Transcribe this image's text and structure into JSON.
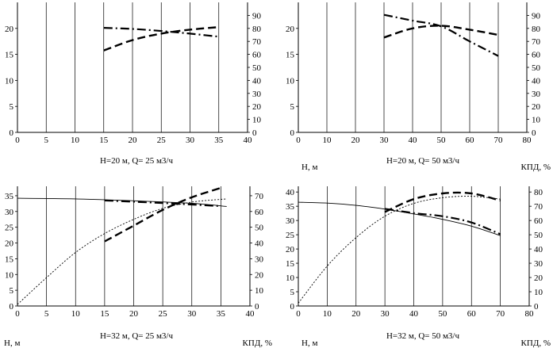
{
  "chart_data": [
    {
      "type": "line",
      "caption": "H=20 м, Q= 25 м3/ч",
      "xlim": [
        0,
        40
      ],
      "xticks": [
        0,
        5,
        10,
        15,
        20,
        25,
        30,
        35,
        40
      ],
      "ylim": [
        0,
        25
      ],
      "yticks": [
        0,
        5,
        10,
        15,
        20
      ],
      "y2lim": [
        0,
        100
      ],
      "y2ticks": [
        0,
        10,
        20,
        30,
        40,
        50,
        60,
        70,
        80,
        90
      ],
      "ylabel": "",
      "y2label": "",
      "series": [
        {
          "name": "head",
          "style": "dashdot",
          "axis": "left",
          "x": [
            15,
            20,
            25,
            30,
            35
          ],
          "y": [
            20.1,
            19.9,
            19.5,
            19.0,
            18.4
          ]
        },
        {
          "name": "efficiency",
          "style": "dashed",
          "axis": "right",
          "x": [
            15,
            20,
            25,
            30,
            35
          ],
          "y": [
            63,
            71,
            76,
            79,
            81
          ]
        }
      ]
    },
    {
      "type": "line",
      "caption": "H=20 м, Q= 50 м3/ч",
      "xlim": [
        0,
        80
      ],
      "xticks": [
        0,
        10,
        20,
        30,
        40,
        50,
        60,
        70,
        80
      ],
      "ylim": [
        0,
        25
      ],
      "yticks": [
        0,
        5,
        10,
        15,
        20
      ],
      "y2lim": [
        0,
        100
      ],
      "y2ticks": [
        0,
        10,
        20,
        30,
        40,
        50,
        60,
        70,
        80,
        90
      ],
      "ylabel": "Н, м",
      "y2label": "КПД, %",
      "series": [
        {
          "name": "head",
          "style": "dashdot",
          "axis": "left",
          "x": [
            30,
            40,
            50,
            60,
            70
          ],
          "y": [
            22.6,
            21.5,
            20.4,
            17.5,
            14.7
          ]
        },
        {
          "name": "efficiency",
          "style": "dashed",
          "axis": "right",
          "x": [
            30,
            40,
            50,
            60,
            70
          ],
          "y": [
            73,
            80,
            82,
            79,
            75
          ]
        }
      ]
    },
    {
      "type": "line",
      "caption": "H=32 м, Q= 25 м3/ч",
      "xlim": [
        0,
        40
      ],
      "xticks": [
        0,
        5,
        10,
        15,
        20,
        25,
        30,
        35,
        40
      ],
      "ylim": [
        0,
        38
      ],
      "yticks": [
        0,
        5,
        10,
        15,
        20,
        25,
        30,
        35
      ],
      "y2lim": [
        0,
        76
      ],
      "y2ticks": [
        0,
        10,
        20,
        30,
        40,
        50,
        60,
        70
      ],
      "ylabel": "Н, м",
      "y2label": "КПД, %",
      "series": [
        {
          "name": "head-reference",
          "style": "solid-thin",
          "axis": "left",
          "x": [
            0,
            10,
            20,
            30,
            36
          ],
          "y": [
            34.2,
            34.0,
            33.4,
            32.6,
            31.6
          ]
        },
        {
          "name": "head",
          "style": "dashdot",
          "axis": "left",
          "x": [
            15,
            20,
            25,
            30,
            35
          ],
          "y": [
            33.5,
            33.1,
            32.7,
            32.2,
            31.7
          ]
        },
        {
          "name": "efficiency-reference",
          "style": "dotted-thin",
          "axis": "right",
          "x": [
            0,
            5,
            10,
            15,
            20,
            25,
            30,
            36
          ],
          "y": [
            1,
            18,
            34,
            46,
            55,
            62,
            66,
            68
          ]
        },
        {
          "name": "efficiency",
          "style": "dashed",
          "axis": "right",
          "x": [
            15,
            20,
            25,
            30,
            35
          ],
          "y": [
            41,
            51,
            61,
            69,
            75
          ]
        }
      ]
    },
    {
      "type": "line",
      "caption": "H=32 м, Q= 50 м3/ч",
      "xlim": [
        0,
        80
      ],
      "xticks": [
        0,
        10,
        20,
        30,
        40,
        50,
        60,
        70,
        80
      ],
      "ylim": [
        0,
        42
      ],
      "yticks": [
        0,
        5,
        10,
        15,
        20,
        25,
        30,
        35,
        40
      ],
      "y2lim": [
        0,
        84
      ],
      "y2ticks": [
        0,
        10,
        20,
        30,
        40,
        50,
        60,
        70,
        80
      ],
      "ylabel": "Н, м",
      "y2label": "КПД, %",
      "series": [
        {
          "name": "head-reference",
          "style": "solid-thin",
          "axis": "left",
          "x": [
            0,
            10,
            20,
            30,
            40,
            50,
            60,
            70
          ],
          "y": [
            36.4,
            36.1,
            35.3,
            34.0,
            32.3,
            30.4,
            28.0,
            24.7
          ]
        },
        {
          "name": "head",
          "style": "dashdot",
          "axis": "left",
          "x": [
            30,
            40,
            50,
            60,
            70
          ],
          "y": [
            34.1,
            32.6,
            31.5,
            29.3,
            25.2
          ]
        },
        {
          "name": "efficiency-reference",
          "style": "dotted-thin",
          "axis": "right",
          "x": [
            0,
            10,
            20,
            30,
            40,
            50,
            60,
            70
          ],
          "y": [
            2,
            28,
            48,
            63,
            72,
            76,
            77,
            75
          ]
        },
        {
          "name": "efficiency",
          "style": "dashed",
          "axis": "right",
          "x": [
            30,
            40,
            50,
            60,
            70
          ],
          "y": [
            66,
            75,
            79,
            79,
            74
          ]
        }
      ]
    }
  ]
}
